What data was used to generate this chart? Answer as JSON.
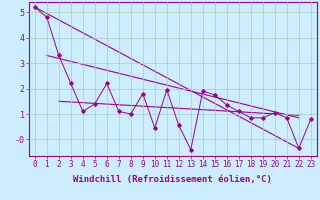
{
  "title": "",
  "xlabel": "Windchill (Refroidissement éolien,°C)",
  "ylabel": "",
  "bg_color": "#cceeff",
  "grid_color": "#aaccbb",
  "line_color": "#990099",
  "xlim": [
    -0.5,
    23.5
  ],
  "ylim": [
    -0.65,
    5.4
  ],
  "xticks": [
    0,
    1,
    2,
    3,
    4,
    5,
    6,
    7,
    8,
    9,
    10,
    11,
    12,
    13,
    14,
    15,
    16,
    17,
    18,
    19,
    20,
    21,
    22,
    23
  ],
  "yticks": [
    0,
    1,
    2,
    3,
    4,
    5
  ],
  "ytick_labels": [
    "-0",
    "1",
    "2",
    "3",
    "4",
    "5"
  ],
  "line1_x": [
    0,
    1,
    2,
    3,
    4,
    5,
    6,
    7,
    8,
    9,
    10,
    11,
    12,
    13,
    14,
    15,
    16,
    17,
    18,
    19,
    20,
    21,
    22,
    23
  ],
  "line1_y": [
    5.2,
    4.8,
    3.3,
    2.2,
    1.1,
    1.4,
    2.2,
    1.1,
    1.0,
    1.8,
    0.45,
    1.95,
    0.55,
    -0.4,
    1.9,
    1.75,
    1.35,
    1.1,
    0.85,
    0.85,
    1.05,
    0.85,
    -0.35,
    0.8
  ],
  "upper_line_x": [
    0,
    22
  ],
  "upper_line_y": [
    5.2,
    -0.35
  ],
  "mid_line_x": [
    1,
    22
  ],
  "mid_line_y": [
    3.3,
    0.85
  ],
  "flat_line_x": [
    2,
    22
  ],
  "flat_line_y": [
    1.5,
    0.95
  ],
  "font_family": "monospace",
  "tick_fontsize": 5.5,
  "label_fontsize": 6.5
}
